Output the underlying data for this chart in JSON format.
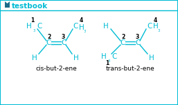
{
  "bg_color": "#ffffff",
  "border_color": "#00bcd4",
  "molecule_color": "#00bcd4",
  "number_color": "#000000",
  "label_color": "#000000",
  "logo_text": "testbook",
  "logo_text_color": "#00bcd4",
  "logo_mark_color": "#1a6b8a",
  "cis_label": "cis-but-2-ene",
  "trans_label": "trans-but-2-ene",
  "fs_mol": 7.5,
  "fs_sub": 5.5,
  "fs_num": 5.5,
  "fs_label": 6.5,
  "fs_logo": 7.5,
  "lw": 1.0
}
